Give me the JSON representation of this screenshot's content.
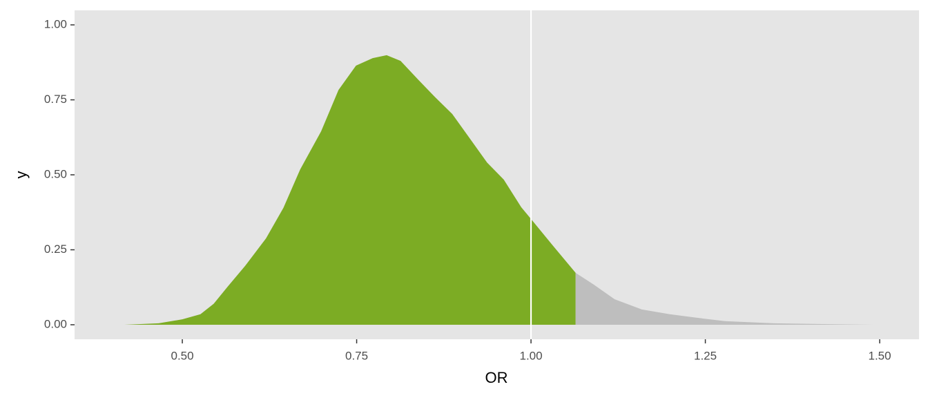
{
  "chart_data": {
    "type": "area",
    "xlabel": "OR",
    "ylabel": "y",
    "series": [
      {
        "color": "#7cac24",
        "x": [
          0.417,
          0.466,
          0.5,
          0.526,
          0.545,
          0.565,
          0.59,
          0.62,
          0.645,
          0.669,
          0.699,
          0.724,
          0.749,
          0.773,
          0.793,
          0.813,
          0.838,
          0.862,
          0.887,
          0.912,
          0.937,
          0.961,
          0.986,
          1.001,
          1.031,
          1.064
        ],
        "values": [
          0,
          0.005,
          0.018,
          0.035,
          0.07,
          0.127,
          0.196,
          0.288,
          0.39,
          0.518,
          0.645,
          0.783,
          0.864,
          0.889,
          0.899,
          0.88,
          0.818,
          0.76,
          0.703,
          0.622,
          0.541,
          0.484,
          0.392,
          0.35,
          0.265,
          0.173
        ]
      },
      {
        "color": "#bebebe",
        "x": [
          1.064,
          1.09,
          1.12,
          1.159,
          1.199,
          1.239,
          1.278,
          1.348,
          1.427,
          1.492
        ],
        "values": [
          0.173,
          0.134,
          0.085,
          0.051,
          0.035,
          0.023,
          0.012,
          0.005,
          0.002,
          0
        ]
      }
    ],
    "vline": 1,
    "xlim": [
      0.3455,
      1.5564
    ],
    "ylim": [
      -0.0484,
      1.0484
    ],
    "xticks": [
      {
        "value": 0.5,
        "label": "0.50"
      },
      {
        "value": 0.75,
        "label": "0.75"
      },
      {
        "value": 1,
        "label": "1.00"
      },
      {
        "value": 1.25,
        "label": "1.25"
      },
      {
        "value": 1.5,
        "label": "1.50"
      }
    ],
    "yticks": [
      {
        "value": 0,
        "label": "0.00"
      },
      {
        "value": 0.25,
        "label": "0.25"
      },
      {
        "value": 0.5,
        "label": "0.50"
      },
      {
        "value": 0.75,
        "label": "0.75"
      },
      {
        "value": 1,
        "label": "1.00"
      }
    ],
    "grid": false
  }
}
